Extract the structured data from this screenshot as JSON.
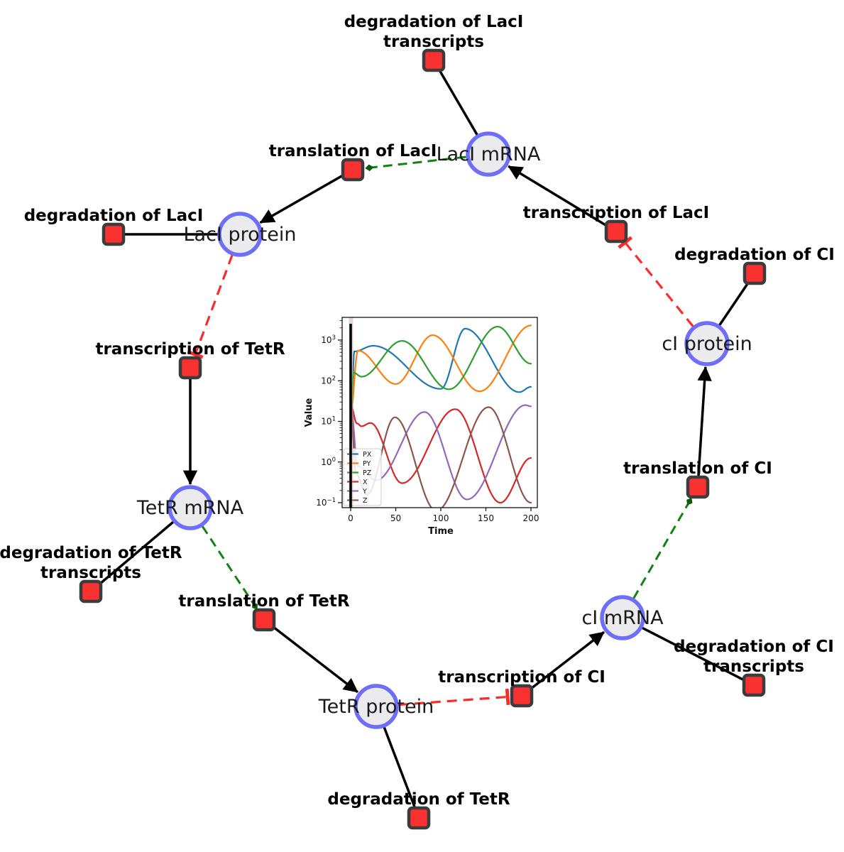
{
  "diagram": {
    "species": [
      {
        "id": "laci-mrna",
        "label": "LacI mRNA"
      },
      {
        "id": "laci-protein",
        "label": "LacI protein"
      },
      {
        "id": "tetr-mrna",
        "label": "TetR mRNA"
      },
      {
        "id": "tetr-protein",
        "label": "TetR protein"
      },
      {
        "id": "ci-mrna",
        "label": "cI mRNA"
      },
      {
        "id": "ci-protein",
        "label": "cI protein"
      }
    ],
    "reactions": [
      {
        "id": "deg-laci-transcripts",
        "label": "degradation of LacI",
        "label2": "transcripts"
      },
      {
        "id": "translation-laci",
        "label": "translation of LacI"
      },
      {
        "id": "deg-laci",
        "label": "degradation of LacI"
      },
      {
        "id": "transcription-laci",
        "label": "transcription of LacI"
      },
      {
        "id": "deg-ci",
        "label": "degradation of CI"
      },
      {
        "id": "transcription-tetr",
        "label": "transcription of TetR"
      },
      {
        "id": "deg-tetr-transcripts",
        "label": "degradation of TetR",
        "label2": "transcripts"
      },
      {
        "id": "translation-tetr",
        "label": "translation of TetR"
      },
      {
        "id": "deg-tetr",
        "label": "degradation of TetR"
      },
      {
        "id": "transcription-ci",
        "label": "transcription of CI"
      },
      {
        "id": "deg-ci-transcripts",
        "label": "degradation of CI",
        "label2": "transcripts"
      },
      {
        "id": "translation-ci",
        "label": "translation of CI"
      }
    ],
    "colors": {
      "species_fill": "#ebebee",
      "species_border": "#6e6ef9",
      "reaction_fill": "#fa3131",
      "reaction_border": "#3c3c3c",
      "edge": "#000000",
      "modifier_edge": "#128212",
      "modifier_arrow": "#0a5c0a",
      "inhibition_edge": "#fb2b2b"
    }
  },
  "chart_data": {
    "type": "line",
    "title": "",
    "xlabel": "Time",
    "ylabel": "Value",
    "x_ticks": [
      0,
      50,
      100,
      150,
      200
    ],
    "y_scale": "log10",
    "y_tick_labels": [
      "3",
      "2",
      "1",
      "0",
      "−1"
    ],
    "xlim": [
      -9,
      207
    ],
    "ylim_log10": [
      -1.12,
      3.56
    ],
    "grid": false,
    "legend_position": "lower left",
    "annotations": {
      "vertical_line_t": 0,
      "shaded_band_t": [
        -1,
        2
      ]
    },
    "series": [
      {
        "name": "PX",
        "color": "#1f77b4",
        "points_t_log10": [
          [
            0,
            0.3
          ],
          [
            4,
            2.72
          ],
          [
            25,
            2.86
          ],
          [
            100,
            1.8
          ],
          [
            127,
            3.28
          ],
          [
            187,
            1.72
          ],
          [
            200,
            1.85
          ]
        ]
      },
      {
        "name": "PY",
        "color": "#ff7f0e",
        "points_t_log10": [
          [
            0,
            1.2
          ],
          [
            8,
            2.74
          ],
          [
            50,
            1.92
          ],
          [
            91,
            3.12
          ],
          [
            143,
            1.74
          ],
          [
            200,
            3.36
          ]
        ]
      },
      {
        "name": "PZ",
        "color": "#2ca02c",
        "points_t_log10": [
          [
            0,
            0.8
          ],
          [
            3,
            2.2
          ],
          [
            12,
            2.1
          ],
          [
            57,
            2.98
          ],
          [
            109,
            1.79
          ],
          [
            163,
            3.33
          ],
          [
            200,
            2.42
          ]
        ]
      },
      {
        "name": "X",
        "color": "#d62728",
        "points_t_log10": [
          [
            0,
            1.4
          ],
          [
            7,
            0.95
          ],
          [
            12,
            0.88
          ],
          [
            22,
            0.96
          ],
          [
            57,
            -0.52
          ],
          [
            116,
            1.3
          ],
          [
            166,
            -1.0
          ],
          [
            200,
            0.1
          ]
        ]
      },
      {
        "name": "Y",
        "color": "#9467bd",
        "points_t_log10": [
          [
            0,
            1.4
          ],
          [
            8,
            -0.1
          ],
          [
            28,
            -0.45
          ],
          [
            82,
            1.23
          ],
          [
            129,
            -0.92
          ],
          [
            194,
            1.4
          ],
          [
            200,
            1.37
          ]
        ]
      },
      {
        "name": "Z",
        "color": "#8c564b",
        "points_t_log10": [
          [
            0,
            1.4
          ],
          [
            6,
            -0.3
          ],
          [
            18,
            -0.8
          ],
          [
            49,
            1.1
          ],
          [
            95,
            -1.2
          ],
          [
            153,
            1.35
          ],
          [
            200,
            -1.0
          ]
        ]
      }
    ]
  }
}
